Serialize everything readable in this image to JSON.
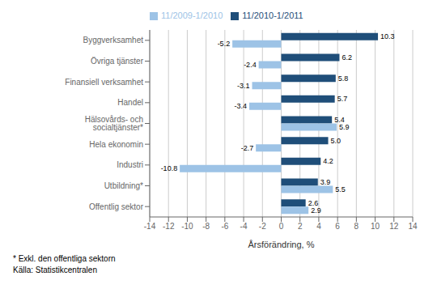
{
  "chart_data": {
    "type": "bar",
    "orientation": "horizontal",
    "categories": [
      "Offentlig sektor",
      "Utbildning*",
      "Industri",
      "Hela ekonomin",
      "Hälsovårds- och socialtjänster*",
      "Handel",
      "Finansiell verksamhet",
      "Övriga tjänster",
      "Byggverksamhet"
    ],
    "series": [
      {
        "name": "11/2010-1/2011",
        "color": "#1F4E79",
        "values": [
          2.6,
          3.9,
          4.2,
          5.0,
          5.4,
          5.7,
          5.8,
          6.2,
          10.3
        ],
        "value_labels": [
          "2.6",
          "3.9",
          "4.2",
          "5.0",
          "5.4",
          "5.7",
          "5.8",
          "6.2",
          "10.3"
        ]
      },
      {
        "name": "11/2009-1/2010",
        "color": "#9DC3E6",
        "values": [
          2.9,
          5.5,
          -10.8,
          -2.7,
          5.9,
          -3.4,
          -3.1,
          -2.4,
          -5.2
        ]
      }
    ],
    "xlabel": "Årsförändring, %",
    "xlim": [
      -14,
      14
    ],
    "xticks": [
      -14,
      -12,
      -10,
      -8,
      -6,
      -4,
      -2,
      0,
      2,
      4,
      6,
      8,
      10,
      12,
      14
    ],
    "grid": true,
    "legend": "upper left",
    "data_labels": true,
    "annotations": [
      "* Exkl. den offentliga sektorn",
      "Källa: Statistikcentralen"
    ]
  }
}
